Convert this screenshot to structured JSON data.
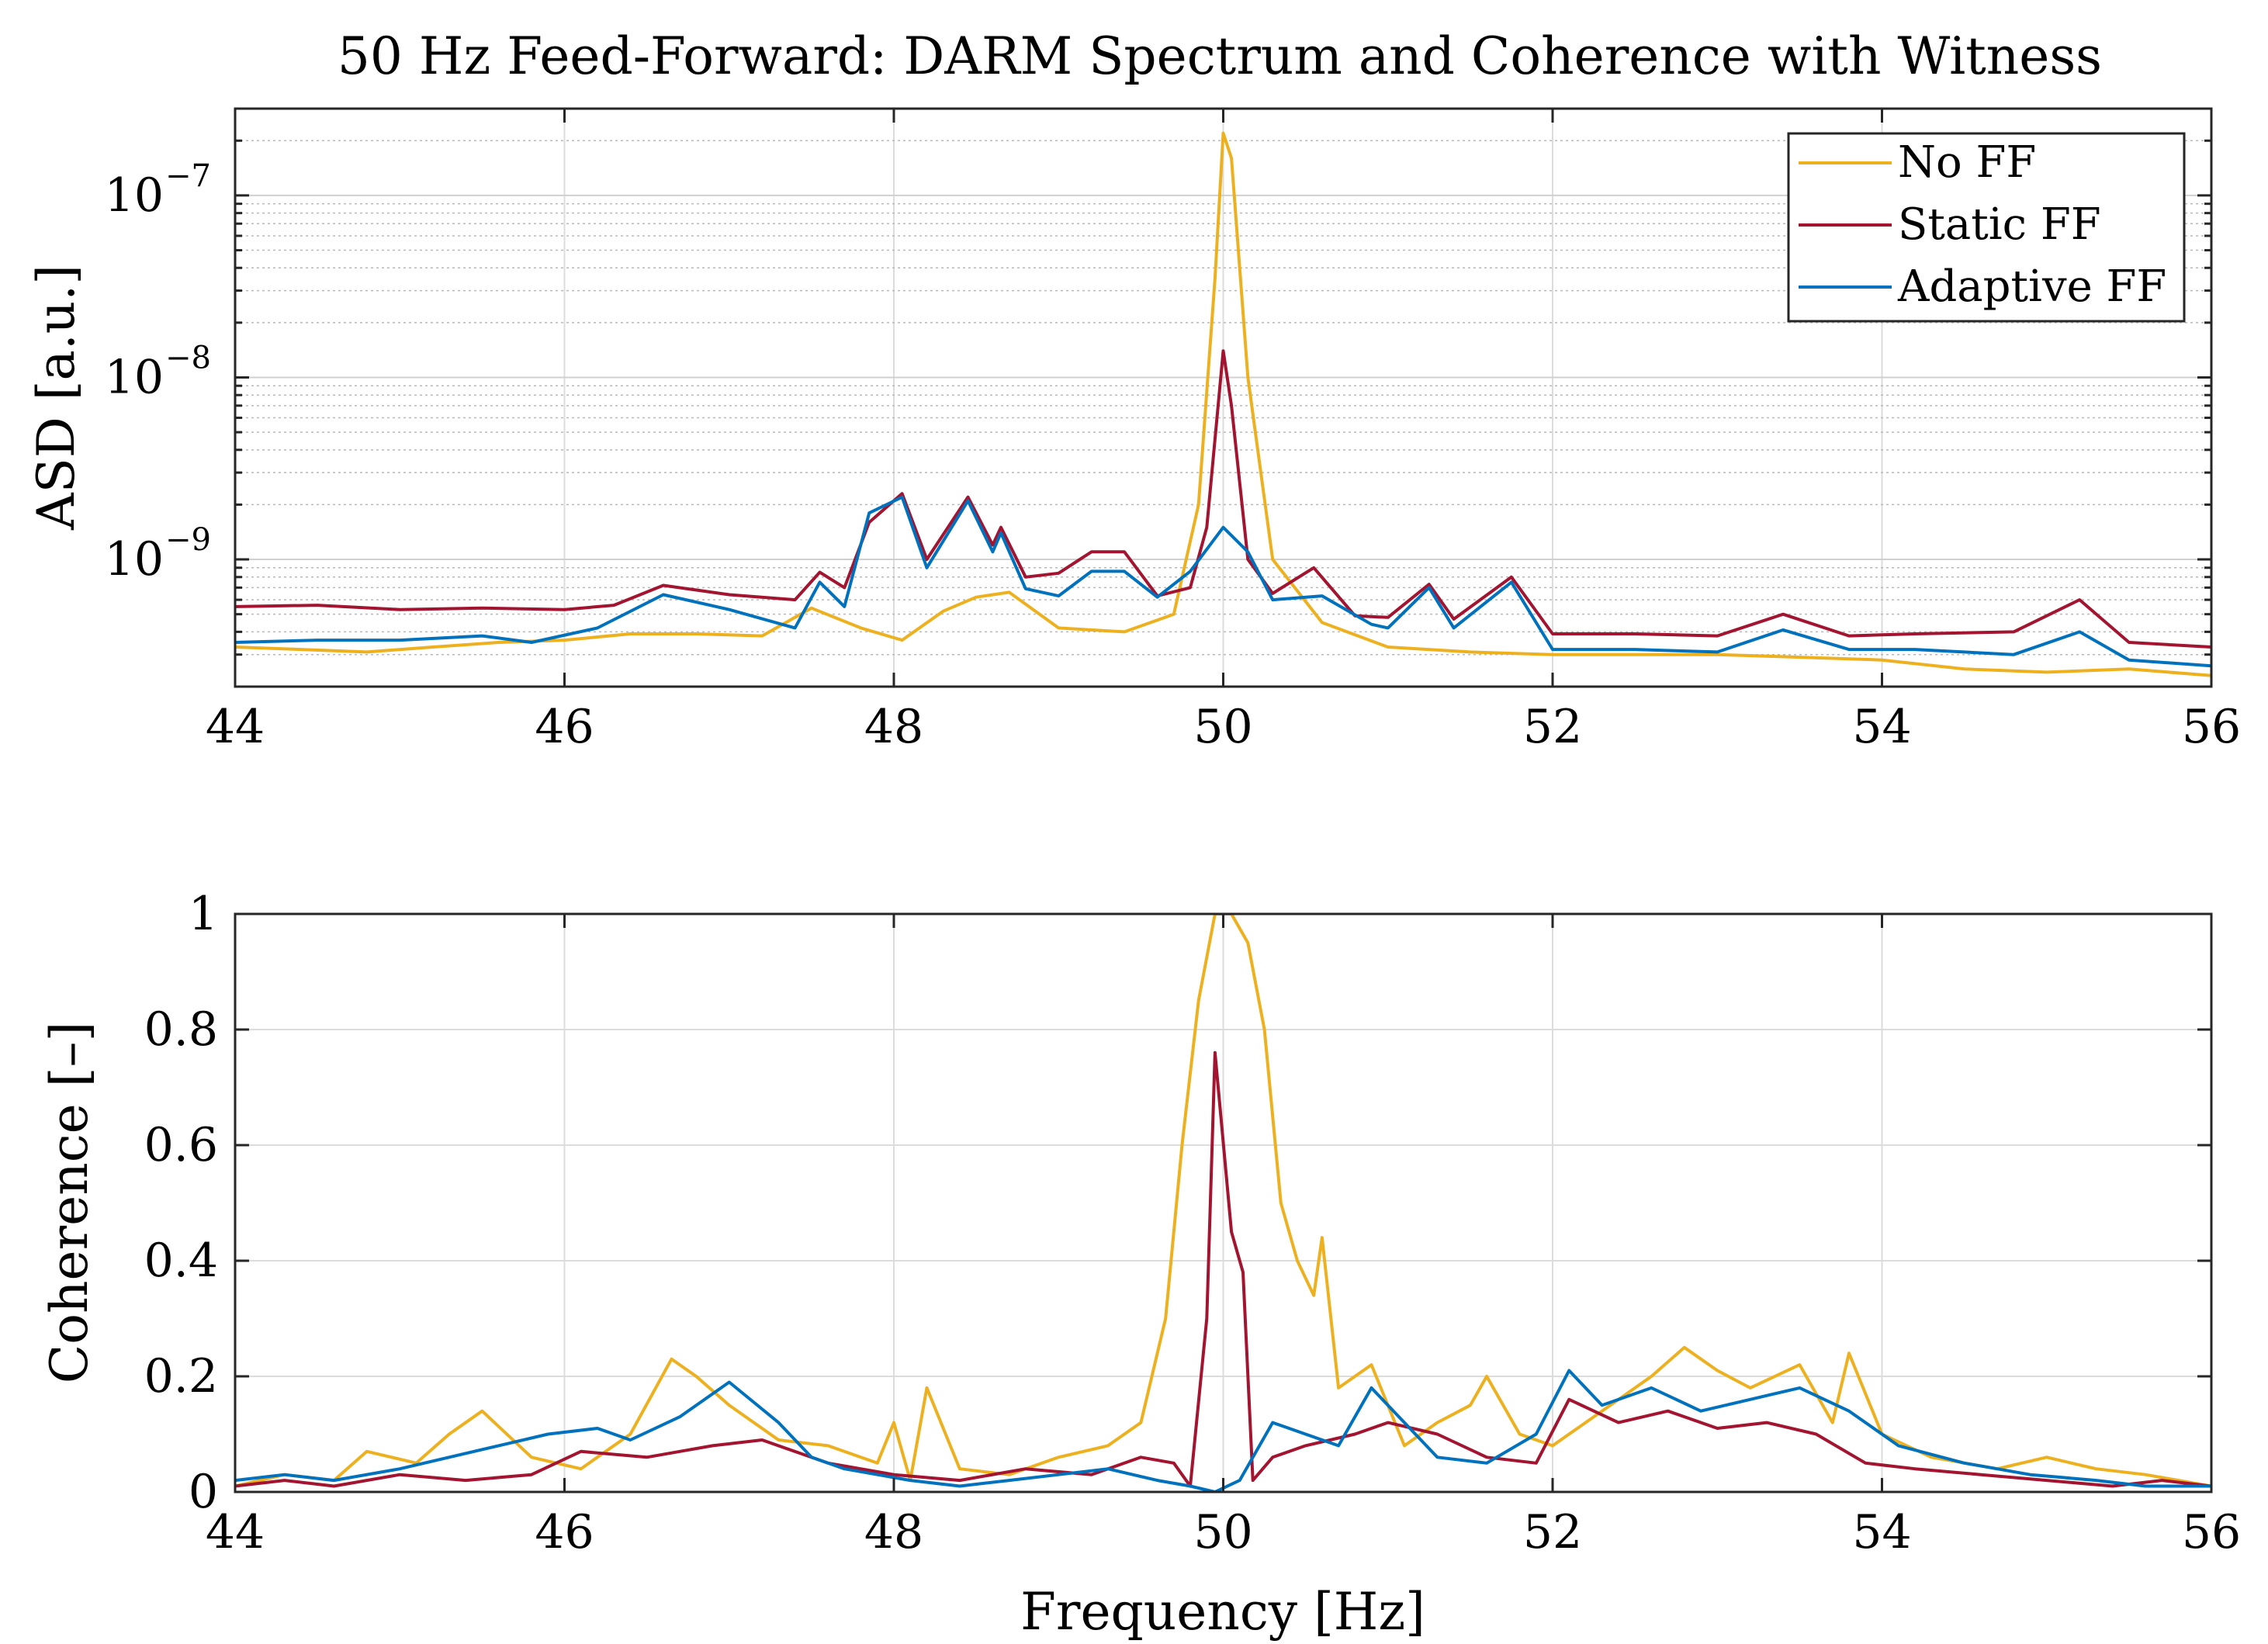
{
  "chart_data": [
    {
      "type": "line",
      "title": "50 Hz Feed-Forward: DARM Spectrum and Coherence with Witness",
      "xlabel": "",
      "ylabel": "ASD [a.u.]",
      "xlim": [
        44,
        56
      ],
      "ylim": [
        2e-10,
        3e-07
      ],
      "yscale": "log",
      "x_ticks": [
        "44",
        "46",
        "48",
        "50",
        "52",
        "54",
        "56"
      ],
      "y_ticks": [
        {
          "base": "10",
          "exp": "−7",
          "value": 1e-07
        },
        {
          "base": "10",
          "exp": "−8",
          "value": 1e-08
        },
        {
          "base": "10",
          "exp": "−9",
          "value": 1e-09
        }
      ],
      "grid": true,
      "legend": "top-right",
      "series": [
        {
          "name": "No FF",
          "color": "#EDB120",
          "x": [
            44.0,
            44.4,
            44.8,
            45.2,
            45.6,
            46.0,
            46.4,
            46.8,
            47.2,
            47.5,
            47.8,
            48.05,
            48.3,
            48.5,
            48.7,
            49.0,
            49.4,
            49.7,
            49.85,
            49.95,
            50.0,
            50.05,
            50.15,
            50.3,
            50.6,
            51.0,
            51.5,
            52.0,
            52.5,
            53.0,
            53.5,
            54.0,
            54.5,
            55.0,
            55.5,
            56.0
          ],
          "values": [
            3.3e-10,
            3.2e-10,
            3.1e-10,
            3.3e-10,
            3.5e-10,
            3.6e-10,
            3.9e-10,
            3.9e-10,
            3.8e-10,
            5.4e-10,
            4.2e-10,
            3.6e-10,
            5.2e-10,
            6.2e-10,
            6.6e-10,
            4.2e-10,
            4e-10,
            5e-10,
            2e-09,
            3.5e-08,
            2.2e-07,
            1.6e-07,
            1e-08,
            1e-09,
            4.5e-10,
            3.3e-10,
            3.1e-10,
            3e-10,
            3e-10,
            3e-10,
            2.9e-10,
            2.8e-10,
            2.5e-10,
            2.4e-10,
            2.5e-10,
            2.3e-10
          ]
        },
        {
          "name": "Static FF",
          "color": "#A2142F",
          "x": [
            44.0,
            44.5,
            45.0,
            45.5,
            46.0,
            46.3,
            46.6,
            47.0,
            47.4,
            47.55,
            47.7,
            47.85,
            48.05,
            48.2,
            48.45,
            48.6,
            48.65,
            48.8,
            49.0,
            49.2,
            49.4,
            49.6,
            49.8,
            49.9,
            50.0,
            50.05,
            50.15,
            50.3,
            50.55,
            50.8,
            51.0,
            51.25,
            51.4,
            51.75,
            52.0,
            52.5,
            53.0,
            53.4,
            53.8,
            54.2,
            54.8,
            55.2,
            55.5,
            56.0
          ],
          "values": [
            5.5e-10,
            5.6e-10,
            5.3e-10,
            5.4e-10,
            5.3e-10,
            5.6e-10,
            7.2e-10,
            6.4e-10,
            6e-10,
            8.5e-10,
            7e-10,
            1.6e-09,
            2.3e-09,
            1e-09,
            2.2e-09,
            1.2e-09,
            1.5e-09,
            8e-10,
            8.4e-10,
            1.1e-09,
            1.1e-09,
            6.3e-10,
            7e-10,
            1.5e-09,
            1.4e-08,
            7e-09,
            1e-09,
            6.5e-10,
            9e-10,
            4.9e-10,
            4.8e-10,
            7.3e-10,
            4.7e-10,
            8e-10,
            3.9e-10,
            3.9e-10,
            3.8e-10,
            5e-10,
            3.8e-10,
            3.9e-10,
            4e-10,
            6e-10,
            3.5e-10,
            3.3e-10
          ]
        },
        {
          "name": "Adaptive FF",
          "color": "#0072BD",
          "x": [
            44.0,
            44.5,
            45.0,
            45.5,
            45.8,
            46.2,
            46.6,
            47.0,
            47.4,
            47.55,
            47.7,
            47.85,
            48.05,
            48.2,
            48.45,
            48.6,
            48.65,
            48.8,
            49.0,
            49.2,
            49.4,
            49.6,
            49.8,
            50.0,
            50.15,
            50.3,
            50.6,
            50.9,
            51.0,
            51.25,
            51.4,
            51.75,
            52.0,
            52.5,
            53.0,
            53.4,
            53.8,
            54.2,
            54.8,
            55.2,
            55.5,
            56.0
          ],
          "values": [
            3.5e-10,
            3.6e-10,
            3.6e-10,
            3.8e-10,
            3.5e-10,
            4.2e-10,
            6.4e-10,
            5.3e-10,
            4.2e-10,
            7.5e-10,
            5.5e-10,
            1.8e-09,
            2.2e-09,
            9e-10,
            2.1e-09,
            1.1e-09,
            1.4e-09,
            6.9e-10,
            6.3e-10,
            8.6e-10,
            8.6e-10,
            6.2e-10,
            8.6e-10,
            1.5e-09,
            1.1e-09,
            6e-10,
            6.3e-10,
            4.4e-10,
            4.2e-10,
            7e-10,
            4.2e-10,
            7.5e-10,
            3.2e-10,
            3.2e-10,
            3.1e-10,
            4.1e-10,
            3.2e-10,
            3.2e-10,
            3e-10,
            4e-10,
            2.8e-10,
            2.6e-10
          ]
        }
      ]
    },
    {
      "type": "line",
      "title": "",
      "xlabel": "Frequency [Hz]",
      "ylabel": "Coherence [–]",
      "xlim": [
        44,
        56
      ],
      "ylim": [
        0,
        1
      ],
      "x_ticks": [
        "44",
        "46",
        "48",
        "50",
        "52",
        "54",
        "56"
      ],
      "y_ticks": [
        "0",
        "0.2",
        "0.4",
        "0.6",
        "0.8",
        "1"
      ],
      "grid": true,
      "series": [
        {
          "color": "#EDB120",
          "x": [
            44.0,
            44.3,
            44.6,
            44.8,
            45.1,
            45.3,
            45.5,
            45.8,
            46.1,
            46.4,
            46.65,
            46.8,
            47.0,
            47.3,
            47.6,
            47.9,
            48.0,
            48.1,
            48.2,
            48.4,
            48.7,
            49.0,
            49.3,
            49.5,
            49.65,
            49.75,
            49.85,
            49.95,
            50.05,
            50.15,
            50.25,
            50.35,
            50.45,
            50.55,
            50.6,
            50.7,
            50.9,
            51.1,
            51.3,
            51.5,
            51.6,
            51.8,
            52.0,
            52.3,
            52.6,
            52.8,
            53.0,
            53.2,
            53.5,
            53.7,
            53.8,
            54.0,
            54.3,
            54.7,
            55.0,
            55.3,
            55.6,
            56.0
          ],
          "values": [
            0.01,
            0.03,
            0.02,
            0.07,
            0.05,
            0.1,
            0.14,
            0.06,
            0.04,
            0.1,
            0.23,
            0.2,
            0.15,
            0.09,
            0.08,
            0.05,
            0.12,
            0.02,
            0.18,
            0.04,
            0.03,
            0.06,
            0.08,
            0.12,
            0.3,
            0.6,
            0.85,
            1.0,
            1.0,
            0.95,
            0.8,
            0.5,
            0.4,
            0.34,
            0.44,
            0.18,
            0.22,
            0.08,
            0.12,
            0.15,
            0.2,
            0.1,
            0.08,
            0.14,
            0.2,
            0.25,
            0.21,
            0.18,
            0.22,
            0.12,
            0.24,
            0.1,
            0.06,
            0.04,
            0.06,
            0.04,
            0.03,
            0.01
          ]
        },
        {
          "color": "#A2142F",
          "x": [
            44.0,
            44.3,
            44.6,
            45.0,
            45.4,
            45.8,
            46.1,
            46.5,
            46.9,
            47.2,
            47.6,
            48.0,
            48.4,
            48.8,
            49.2,
            49.5,
            49.7,
            49.8,
            49.9,
            49.95,
            50.05,
            50.12,
            50.18,
            50.3,
            50.5,
            50.8,
            51.0,
            51.3,
            51.6,
            51.9,
            52.1,
            52.4,
            52.7,
            53.0,
            53.3,
            53.6,
            53.9,
            54.2,
            54.6,
            55.0,
            55.4,
            55.7,
            56.0
          ],
          "values": [
            0.01,
            0.02,
            0.01,
            0.03,
            0.02,
            0.03,
            0.07,
            0.06,
            0.08,
            0.09,
            0.05,
            0.03,
            0.02,
            0.04,
            0.03,
            0.06,
            0.05,
            0.01,
            0.3,
            0.76,
            0.45,
            0.38,
            0.02,
            0.06,
            0.08,
            0.1,
            0.12,
            0.1,
            0.06,
            0.05,
            0.16,
            0.12,
            0.14,
            0.11,
            0.12,
            0.1,
            0.05,
            0.04,
            0.03,
            0.02,
            0.01,
            0.02,
            0.01
          ]
        },
        {
          "color": "#0072BD",
          "x": [
            44.0,
            44.3,
            44.6,
            45.0,
            45.3,
            45.6,
            45.9,
            46.2,
            46.4,
            46.7,
            47.0,
            47.3,
            47.5,
            47.7,
            47.9,
            48.1,
            48.4,
            48.7,
            49.0,
            49.3,
            49.6,
            49.8,
            49.95,
            50.1,
            50.3,
            50.5,
            50.7,
            50.9,
            51.1,
            51.3,
            51.6,
            51.9,
            52.1,
            52.3,
            52.6,
            52.9,
            53.2,
            53.5,
            53.8,
            54.1,
            54.5,
            54.9,
            55.3,
            55.6,
            56.0
          ],
          "values": [
            0.02,
            0.03,
            0.02,
            0.04,
            0.06,
            0.08,
            0.1,
            0.11,
            0.09,
            0.13,
            0.19,
            0.12,
            0.06,
            0.04,
            0.03,
            0.02,
            0.01,
            0.02,
            0.03,
            0.04,
            0.02,
            0.01,
            0.0,
            0.02,
            0.12,
            0.1,
            0.08,
            0.18,
            0.12,
            0.06,
            0.05,
            0.1,
            0.21,
            0.15,
            0.18,
            0.14,
            0.16,
            0.18,
            0.14,
            0.08,
            0.05,
            0.03,
            0.02,
            0.01,
            0.01
          ]
        }
      ]
    }
  ]
}
